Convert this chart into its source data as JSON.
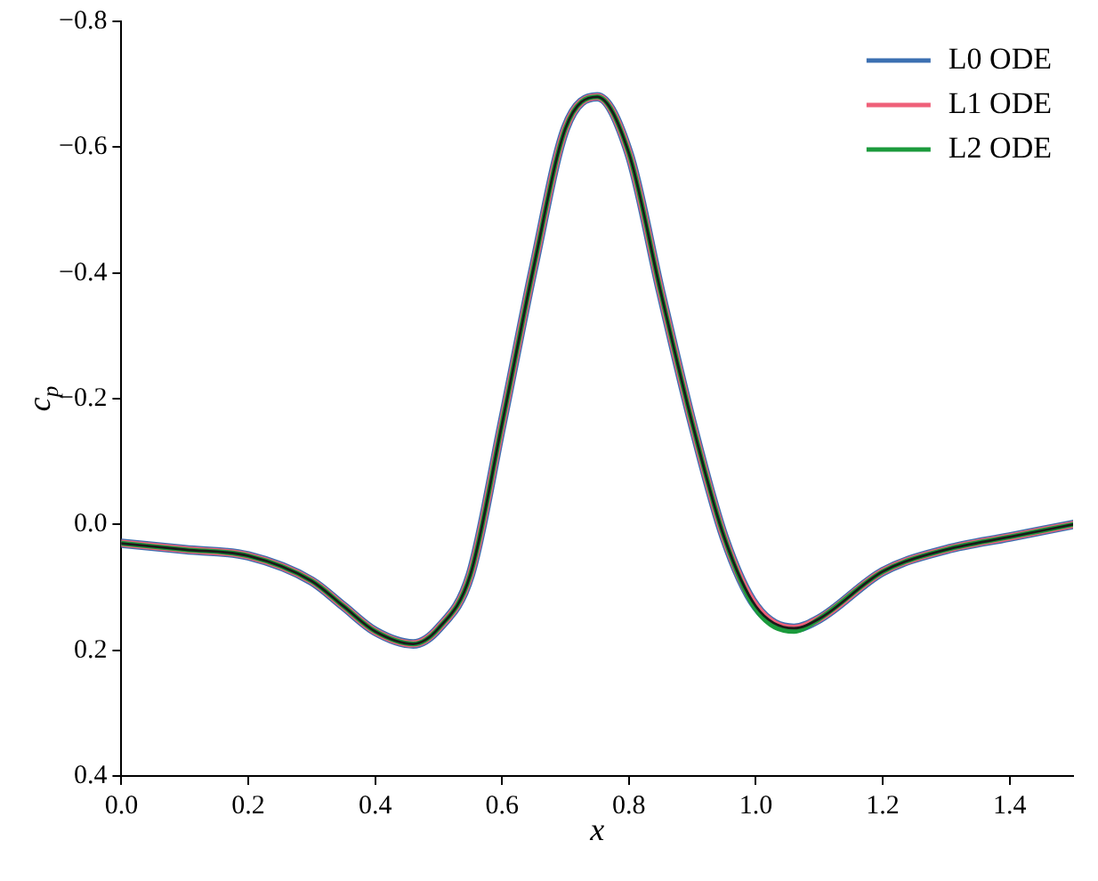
{
  "chart_data": {
    "type": "line",
    "xlabel": "x",
    "ylabel": "c$_{p}$",
    "x": [
      0,
      0.1,
      0.2,
      0.3,
      0.35,
      0.4,
      0.46,
      0.5,
      0.55,
      0.6,
      0.65,
      0.7,
      0.75,
      0.8,
      0.85,
      0.9,
      0.95,
      1.0,
      1.06,
      1.1,
      1.2,
      1.3,
      1.4,
      1.5
    ],
    "series": [
      {
        "name": "L0 ODE",
        "color": "#3b6fb1",
        "values": [
          0.03,
          0.04,
          0.05,
          0.09,
          0.13,
          0.17,
          0.19,
          0.165,
          0.08,
          -0.16,
          -0.41,
          -0.63,
          -0.68,
          -0.59,
          -0.37,
          -0.16,
          0.02,
          0.13,
          0.165,
          0.15,
          0.075,
          0.04,
          0.02,
          0.0
        ]
      },
      {
        "name": "L1 ODE",
        "color": "#ef6079",
        "values": [
          0.03,
          0.04,
          0.05,
          0.09,
          0.13,
          0.17,
          0.19,
          0.165,
          0.08,
          -0.16,
          -0.41,
          -0.63,
          -0.68,
          -0.59,
          -0.37,
          -0.16,
          0.02,
          0.13,
          0.165,
          0.15,
          0.075,
          0.04,
          0.02,
          0.0
        ]
      },
      {
        "name": "L2 ODE",
        "color": "#1b9a3c",
        "values": [
          0.03,
          0.04,
          0.05,
          0.09,
          0.13,
          0.17,
          0.19,
          0.165,
          0.08,
          -0.16,
          -0.41,
          -0.63,
          -0.68,
          -0.59,
          -0.37,
          -0.16,
          0.02,
          0.135,
          0.17,
          0.15,
          0.075,
          0.04,
          0.02,
          0.0
        ]
      },
      {
        "color": "#1a1a1a",
        "values": [
          0.03,
          0.04,
          0.05,
          0.09,
          0.13,
          0.17,
          0.19,
          0.165,
          0.08,
          -0.16,
          -0.41,
          -0.63,
          -0.68,
          -0.59,
          -0.37,
          -0.16,
          0.02,
          0.13,
          0.165,
          0.15,
          0.075,
          0.04,
          0.02,
          0.0
        ]
      }
    ],
    "xlim": [
      0,
      1.5
    ],
    "xticks": [
      {
        "value": 0,
        "label": "0.0"
      },
      0.2,
      0.4,
      0.6,
      0.8,
      {
        "value": 1,
        "label": "1.0"
      },
      1.2,
      1.4
    ],
    "ylim": [
      0.4,
      -0.8
    ],
    "yticks": [
      {
        "value": -0.8,
        "label": "−0.8"
      },
      {
        "value": -0.6,
        "label": "−0.6"
      },
      {
        "value": -0.4,
        "label": "−0.4"
      },
      {
        "value": -0.2,
        "label": "−0.2"
      },
      {
        "value": 0,
        "label": "0.0"
      },
      0.2,
      0.4
    ],
    "grid": false,
    "legend": "top right",
    "marker": "none",
    "line_style": "solid"
  }
}
